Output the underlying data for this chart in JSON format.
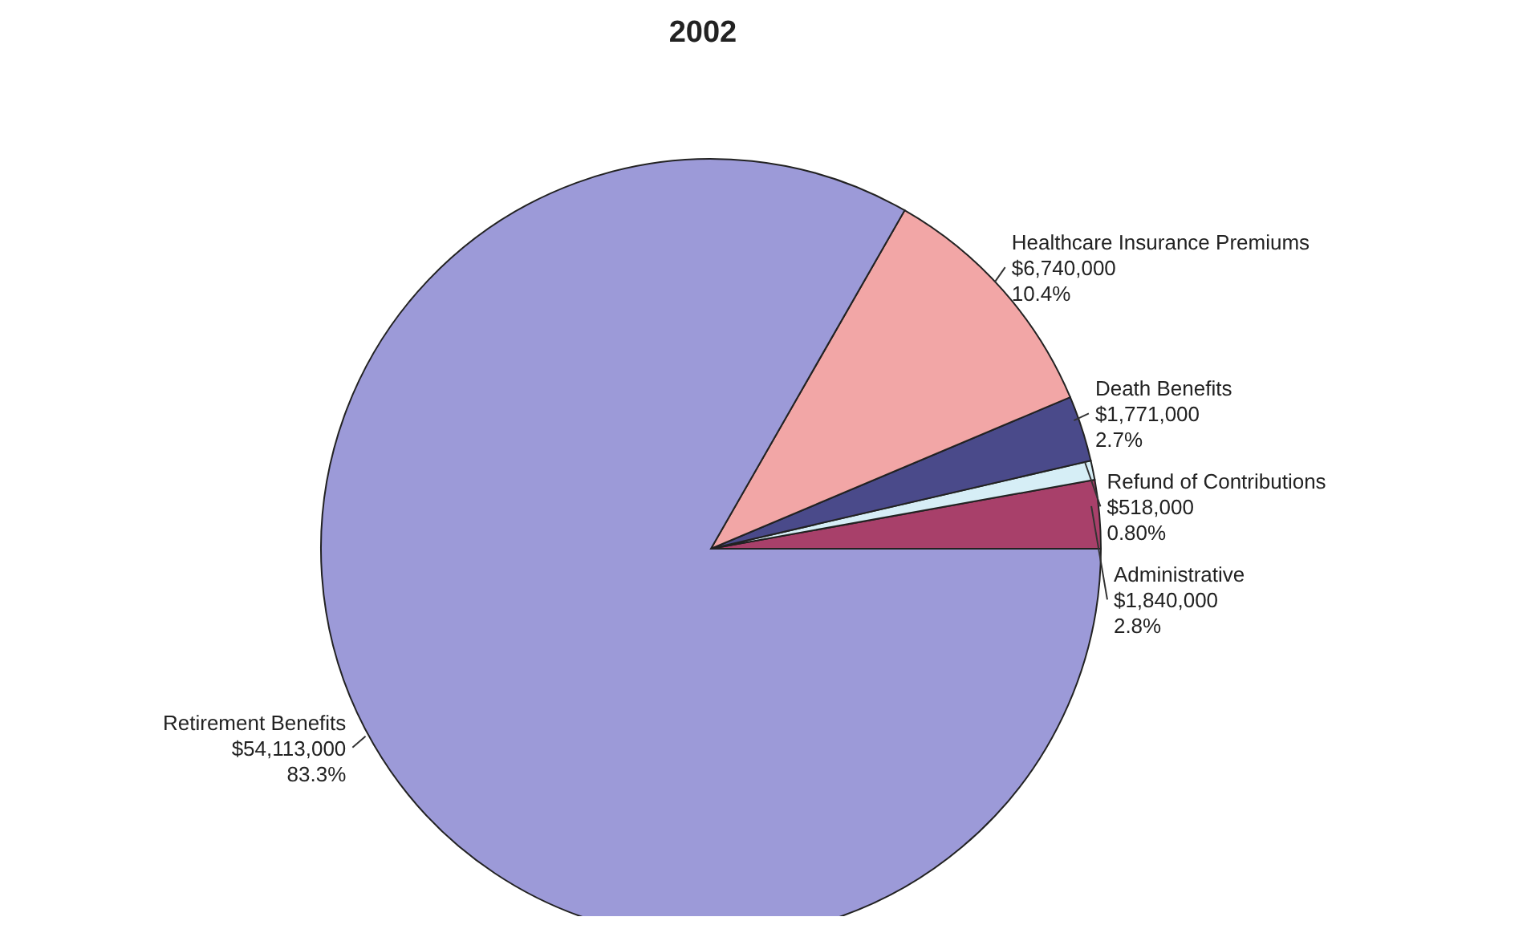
{
  "chart_data": {
    "type": "pie",
    "title": "2002",
    "categories": [
      "Administrative",
      "Refund of Contributions",
      "Death Benefits",
      "Healthcare Insurance Premiums",
      "Retirement Benefits"
    ],
    "values": [
      1840000,
      518000,
      1771000,
      6740000,
      54113000
    ],
    "value_labels": [
      "$1,840,000\n2.8%",
      "$518,000\n0.80%",
      "$1,771,000\n2.7%",
      "$6,740,000\n10.4%",
      "$54,113,000\n83.3%"
    ],
    "colors": [
      "#a8406a",
      "#d6eef6",
      "#4a4a8a",
      "#f2a6a6",
      "#9c9ad8"
    ]
  }
}
